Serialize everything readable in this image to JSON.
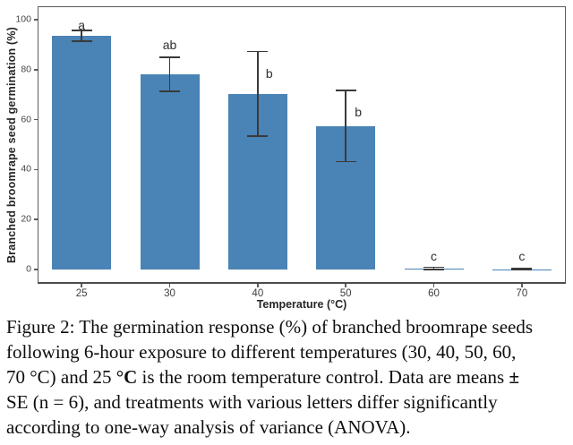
{
  "chart_data": {
    "type": "bar",
    "title": "",
    "xlabel": "Temperature (°C)",
    "ylabel": "Branched broomrape seed germination (%)",
    "categories": [
      "25",
      "30",
      "40",
      "50",
      "60",
      "70"
    ],
    "values": [
      93.5,
      78,
      70.3,
      57.5,
      0.5,
      0.1
    ],
    "error_low": [
      91.4,
      71.4,
      53.4,
      43.2,
      0.1,
      0.0
    ],
    "error_high": [
      95.7,
      85.0,
      87.3,
      71.8,
      0.9,
      0.35
    ],
    "sig_letters": [
      "a",
      "ab",
      "b",
      "b",
      "c",
      "c"
    ],
    "sig_letter_y": [
      98,
      90,
      78.5,
      63,
      5.5,
      5.5
    ],
    "sig_letter_dx": [
      0,
      0,
      13,
      14,
      0,
      0
    ],
    "ylim": [
      0,
      100
    ],
    "yticks": [
      0,
      20,
      40,
      60,
      80,
      100
    ],
    "grid": false,
    "legend": false,
    "bar_color": "#4a83b5",
    "error_color": "#3a3a3a"
  },
  "figure": {
    "caption_lines": [
      [
        {
          "text": "Figure 2: The germination response (%) of branched broomrape seeds",
          "bold": false
        }
      ],
      [
        {
          "text": "following 6-hour exposure to different temperatures (30, 40, 50, 60,",
          "bold": false
        }
      ],
      [
        {
          "text": "70 °C) and 25 ",
          "bold": false
        },
        {
          "text": "°C",
          "bold": true
        },
        {
          "text": " is the room temperature control. Data are means ",
          "bold": false
        },
        {
          "text": "±",
          "bold": true
        }
      ],
      [
        {
          "text": "SE (n = 6), and treatments with various letters differ significantly",
          "bold": false
        }
      ],
      [
        {
          "text": "according to one-way analysis of variance (ANOVA).",
          "bold": false
        }
      ]
    ]
  }
}
